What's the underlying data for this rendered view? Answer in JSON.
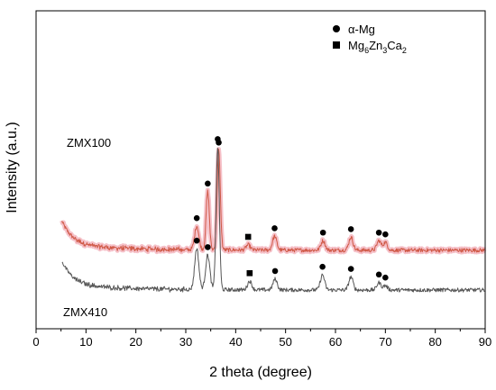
{
  "chart_data": {
    "type": "line",
    "title": "",
    "xlabel": "2 theta (degree)",
    "ylabel": "Intensity (a.u.)",
    "xlim": [
      0,
      90
    ],
    "xticks": [
      "0",
      "10",
      "20",
      "30",
      "40",
      "50",
      "60",
      "70",
      "80",
      "90"
    ],
    "grid": false,
    "legend_position": "top-right",
    "legend": [
      {
        "marker": "circle",
        "label": "α-Mg"
      },
      {
        "marker": "square",
        "label_parts": [
          "Mg",
          "6",
          "Zn",
          "3",
          "Ca",
          "2"
        ]
      }
    ],
    "series": [
      {
        "name": "ZMX100",
        "color": "#d05a48",
        "band_color": "#f3b6c0",
        "baseline": 0.92,
        "peaks": [
          {
            "x": 32.2,
            "height": 0.55,
            "marker": "circle"
          },
          {
            "x": 34.4,
            "height": 1.35,
            "marker": "circle"
          },
          {
            "x": 36.6,
            "height": 2.3,
            "marker": "circle"
          },
          {
            "x": 42.5,
            "height": 0.12,
            "marker": "square"
          },
          {
            "x": 47.8,
            "height": 0.32,
            "marker": "circle"
          },
          {
            "x": 57.5,
            "height": 0.22,
            "marker": "circle"
          },
          {
            "x": 63.1,
            "height": 0.3,
            "marker": "circle"
          },
          {
            "x": 68.7,
            "height": 0.22,
            "marker": "circle"
          },
          {
            "x": 70.0,
            "height": 0.18,
            "marker": "circle"
          }
        ]
      },
      {
        "name": "ZMX410",
        "color": "#555555",
        "baseline": 0.0,
        "peaks": [
          {
            "x": 32.2,
            "height": 0.95,
            "marker": "circle"
          },
          {
            "x": 34.4,
            "height": 0.8,
            "marker": "circle"
          },
          {
            "x": 36.4,
            "height": 3.3,
            "marker": "circle"
          },
          {
            "x": 42.8,
            "height": 0.2,
            "marker": "square"
          },
          {
            "x": 47.9,
            "height": 0.25,
            "marker": "circle"
          },
          {
            "x": 57.4,
            "height": 0.35,
            "marker": "circle"
          },
          {
            "x": 63.1,
            "height": 0.3,
            "marker": "circle"
          },
          {
            "x": 68.7,
            "height": 0.17,
            "marker": "circle"
          },
          {
            "x": 70.0,
            "height": 0.1,
            "marker": "circle"
          }
        ]
      }
    ]
  }
}
